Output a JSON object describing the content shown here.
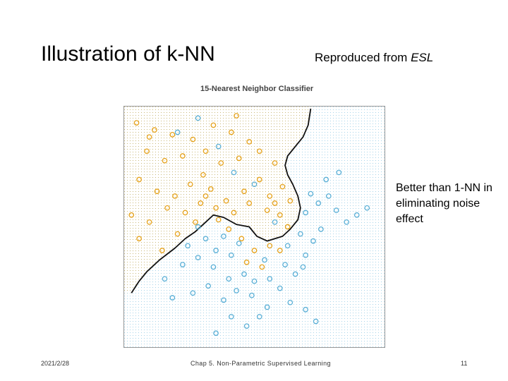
{
  "slide": {
    "title": "Illustration of k-NN",
    "source_prefix": "Reproduced from ",
    "source_book": "ESL",
    "note": "Better than 1-NN in eliminating noise effect",
    "date": "2021/2/28",
    "chapter": "Chap 5. Non-Parametric Supervised Learning",
    "page": "11"
  },
  "figure": {
    "title": "15-Nearest Neighbor Classifier",
    "colors": {
      "orange": "#E6A21B",
      "blue": "#5AAFD6",
      "boundary": "#111111",
      "frame": "#999999"
    }
  },
  "chart_data": {
    "type": "scatter",
    "title": "15-Nearest Neighbor Classifier",
    "xlabel": "",
    "ylabel": "",
    "xlim": [
      0,
      1
    ],
    "ylim": [
      0,
      1
    ],
    "decision_boundary": [
      [
        0.02,
        0.22
      ],
      [
        0.05,
        0.27
      ],
      [
        0.08,
        0.31
      ],
      [
        0.13,
        0.36
      ],
      [
        0.19,
        0.41
      ],
      [
        0.23,
        0.45
      ],
      [
        0.27,
        0.48
      ],
      [
        0.31,
        0.52
      ],
      [
        0.34,
        0.55
      ],
      [
        0.38,
        0.54
      ],
      [
        0.43,
        0.51
      ],
      [
        0.48,
        0.5
      ],
      [
        0.51,
        0.46
      ],
      [
        0.55,
        0.44
      ],
      [
        0.58,
        0.45
      ],
      [
        0.61,
        0.46
      ],
      [
        0.64,
        0.49
      ],
      [
        0.67,
        0.53
      ],
      [
        0.68,
        0.58
      ],
      [
        0.67,
        0.63
      ],
      [
        0.65,
        0.68
      ],
      [
        0.63,
        0.72
      ],
      [
        0.62,
        0.76
      ],
      [
        0.63,
        0.8
      ],
      [
        0.66,
        0.84
      ],
      [
        0.69,
        0.88
      ],
      [
        0.71,
        0.93
      ],
      [
        0.72,
        1.0
      ]
    ],
    "series": [
      {
        "color": "orange",
        "points": [
          [
            0.04,
            0.94
          ],
          [
            0.11,
            0.91
          ],
          [
            0.18,
            0.89
          ],
          [
            0.26,
            0.87
          ],
          [
            0.34,
            0.93
          ],
          [
            0.41,
            0.9
          ],
          [
            0.48,
            0.86
          ],
          [
            0.08,
            0.82
          ],
          [
            0.15,
            0.78
          ],
          [
            0.22,
            0.8
          ],
          [
            0.31,
            0.82
          ],
          [
            0.37,
            0.77
          ],
          [
            0.44,
            0.79
          ],
          [
            0.52,
            0.82
          ],
          [
            0.58,
            0.77
          ],
          [
            0.05,
            0.7
          ],
          [
            0.12,
            0.65
          ],
          [
            0.19,
            0.63
          ],
          [
            0.25,
            0.68
          ],
          [
            0.33,
            0.66
          ],
          [
            0.39,
            0.61
          ],
          [
            0.46,
            0.65
          ],
          [
            0.52,
            0.7
          ],
          [
            0.56,
            0.63
          ],
          [
            0.61,
            0.67
          ],
          [
            0.02,
            0.55
          ],
          [
            0.09,
            0.52
          ],
          [
            0.16,
            0.58
          ],
          [
            0.23,
            0.56
          ],
          [
            0.29,
            0.6
          ],
          [
            0.35,
            0.58
          ],
          [
            0.42,
            0.56
          ],
          [
            0.48,
            0.6
          ],
          [
            0.55,
            0.57
          ],
          [
            0.6,
            0.55
          ],
          [
            0.2,
            0.47
          ],
          [
            0.27,
            0.52
          ],
          [
            0.4,
            0.49
          ],
          [
            0.45,
            0.45
          ],
          [
            0.5,
            0.4
          ],
          [
            0.56,
            0.42
          ],
          [
            0.6,
            0.4
          ],
          [
            0.47,
            0.35
          ],
          [
            0.53,
            0.33
          ],
          [
            0.05,
            0.45
          ],
          [
            0.14,
            0.4
          ],
          [
            0.36,
            0.53
          ],
          [
            0.63,
            0.5
          ],
          [
            0.58,
            0.6
          ],
          [
            0.3,
            0.72
          ],
          [
            0.09,
            0.88
          ],
          [
            0.43,
            0.97
          ],
          [
            0.64,
            0.61
          ],
          [
            0.31,
            0.63
          ]
        ]
      },
      {
        "color": "blue",
        "points": [
          [
            0.2,
            0.9
          ],
          [
            0.28,
            0.96
          ],
          [
            0.36,
            0.84
          ],
          [
            0.42,
            0.73
          ],
          [
            0.5,
            0.68
          ],
          [
            0.58,
            0.52
          ],
          [
            0.24,
            0.42
          ],
          [
            0.31,
            0.45
          ],
          [
            0.35,
            0.4
          ],
          [
            0.41,
            0.38
          ],
          [
            0.46,
            0.3
          ],
          [
            0.4,
            0.28
          ],
          [
            0.34,
            0.33
          ],
          [
            0.28,
            0.37
          ],
          [
            0.22,
            0.34
          ],
          [
            0.15,
            0.28
          ],
          [
            0.18,
            0.2
          ],
          [
            0.26,
            0.22
          ],
          [
            0.32,
            0.25
          ],
          [
            0.38,
            0.19
          ],
          [
            0.43,
            0.23
          ],
          [
            0.49,
            0.21
          ],
          [
            0.55,
            0.16
          ],
          [
            0.6,
            0.24
          ],
          [
            0.64,
            0.18
          ],
          [
            0.7,
            0.15
          ],
          [
            0.74,
            0.1
          ],
          [
            0.52,
            0.12
          ],
          [
            0.47,
            0.08
          ],
          [
            0.41,
            0.12
          ],
          [
            0.35,
            0.05
          ],
          [
            0.5,
            0.27
          ],
          [
            0.56,
            0.28
          ],
          [
            0.66,
            0.3
          ],
          [
            0.7,
            0.38
          ],
          [
            0.73,
            0.44
          ],
          [
            0.76,
            0.49
          ],
          [
            0.7,
            0.56
          ],
          [
            0.75,
            0.6
          ],
          [
            0.79,
            0.63
          ],
          [
            0.82,
            0.57
          ],
          [
            0.86,
            0.52
          ],
          [
            0.9,
            0.55
          ],
          [
            0.94,
            0.58
          ],
          [
            0.78,
            0.7
          ],
          [
            0.83,
            0.73
          ],
          [
            0.72,
            0.64
          ],
          [
            0.63,
            0.42
          ],
          [
            0.68,
            0.47
          ],
          [
            0.69,
            0.33
          ],
          [
            0.62,
            0.34
          ],
          [
            0.28,
            0.5
          ],
          [
            0.38,
            0.46
          ],
          [
            0.44,
            0.43
          ],
          [
            0.54,
            0.36
          ]
        ]
      }
    ]
  }
}
